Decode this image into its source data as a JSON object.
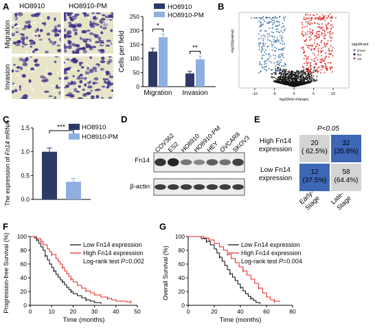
{
  "panels": {
    "a": "A",
    "b": "B",
    "c": "C",
    "d": "D",
    "e": "E",
    "f": "F",
    "g": "G"
  },
  "panel_a": {
    "col_headers": [
      "HO8910",
      "HO8910-PM"
    ],
    "row_labels": [
      "Migration",
      "Invasion"
    ],
    "colors": {
      "dark": "#2e3a66",
      "light": "#8fafe0",
      "cell_dark": "#3a2f8a",
      "bg": "#e8e4c8"
    }
  },
  "panel_b": {
    "ylabel": "-log10(pvalue)",
    "xlabel": "log2(fold change)",
    "xticks": [
      "-10",
      "-5",
      "0",
      "5",
      "10"
    ],
    "legend_title": "significant",
    "legend_items": [
      {
        "label": "Down",
        "color": "#4f7fb0"
      },
      {
        "label": "No",
        "color": "#111111"
      },
      {
        "label": "Up",
        "color": "#e03c3c"
      }
    ]
  },
  "panel_d": {
    "lanes": [
      "COV362",
      "ES2",
      "HO8910",
      "HO8910-PM",
      "HEY",
      "OVCAR8",
      "SKOV3"
    ],
    "rows": [
      "Fn14",
      "β-actin"
    ]
  },
  "panel_e": {
    "title": "P<0.05",
    "row_labels": [
      "High Fn14 expression",
      "Low Fn14 expression"
    ],
    "col_labels": [
      "Early-Stage",
      "Late-Stage"
    ],
    "cells": [
      {
        "count": "20",
        "pct": "( 62.5%)",
        "color": "#d4d4d4"
      },
      {
        "count": "32",
        "pct": "(35.6%)",
        "color": "#3e67b6"
      },
      {
        "count": "12",
        "pct": "(37.5%)",
        "color": "#3e67b6"
      },
      {
        "count": "58",
        "pct": "(64.4%)",
        "color": "#d4d4d4"
      }
    ]
  },
  "chart_data": [
    {
      "type": "bar",
      "panel": "A",
      "categories": [
        "Migration",
        "Invasion"
      ],
      "series": [
        {
          "name": "HO8910",
          "values": [
            125,
            47
          ],
          "errors": [
            12,
            8
          ],
          "color": "#2e3a66"
        },
        {
          "name": "HO8910-PM",
          "values": [
            176,
            97
          ],
          "errors": [
            12,
            12
          ],
          "color": "#8fafe0"
        }
      ],
      "ylabel": "Cells per field",
      "ylim": [
        0,
        250
      ],
      "yticks": [
        "0",
        "50",
        "100",
        "150",
        "200",
        "250"
      ],
      "significance": [
        "*",
        "**"
      ],
      "legend": "top-right"
    },
    {
      "type": "bar",
      "panel": "C",
      "categories": [
        "HO8910",
        "HO8910-PM"
      ],
      "values": [
        1.0,
        0.37
      ],
      "errors": [
        0.08,
        0.07
      ],
      "colors": [
        "#2e3a66",
        "#8fafe0"
      ],
      "ylabel": "The expression of Fn14 mRNA",
      "ylim": [
        0,
        1.5
      ],
      "yticks": [
        "0.0",
        "0.5",
        "1.0",
        "1.5"
      ],
      "significance": "***",
      "legend_series": [
        "HO8910",
        "HO8910-PM"
      ]
    },
    {
      "type": "line",
      "panel": "F",
      "xlabel": "Time (months)",
      "ylabel": "Progression-free Survival (%)",
      "xlim": [
        0,
        50
      ],
      "ylim": [
        0,
        100
      ],
      "xticks": [
        "0",
        "10",
        "20",
        "30",
        "40",
        "50"
      ],
      "yticks": [
        "0",
        "20",
        "40",
        "60",
        "80",
        "100"
      ],
      "annotation": "Log-rank test P=0.002",
      "series": [
        {
          "name": "Low Fn14 expression",
          "color": "#000000",
          "x": [
            0,
            2,
            3,
            4,
            5,
            6,
            7,
            8,
            9,
            10,
            11,
            12,
            13,
            14,
            15,
            16,
            17,
            18,
            19,
            20,
            22,
            24,
            26,
            28,
            30,
            33
          ],
          "y": [
            100,
            98,
            95,
            90,
            85,
            80,
            72,
            66,
            60,
            55,
            50,
            45,
            41,
            37,
            34,
            30,
            26,
            23,
            20,
            17,
            14,
            11,
            8,
            6,
            4,
            2
          ]
        },
        {
          "name": "High Fn14 expression",
          "color": "#e02020",
          "x": [
            0,
            3,
            5,
            6,
            8,
            9,
            10,
            12,
            13,
            14,
            15,
            16,
            17,
            18,
            19,
            20,
            22,
            24,
            26,
            28,
            30,
            33,
            36,
            38,
            40,
            45,
            47
          ],
          "y": [
            100,
            97,
            93,
            88,
            82,
            78,
            74,
            68,
            64,
            60,
            55,
            50,
            46,
            42,
            38,
            34,
            29,
            25,
            21,
            18,
            15,
            12,
            10,
            8,
            6,
            5,
            5
          ]
        }
      ]
    },
    {
      "type": "line",
      "panel": "G",
      "xlabel": "Time (months)",
      "ylabel": "Overall Survival (%)",
      "xlim": [
        0,
        80
      ],
      "ylim": [
        0,
        100
      ],
      "xticks": [
        "0",
        "20",
        "40",
        "60",
        "80"
      ],
      "yticks": [
        "0",
        "20",
        "40",
        "60",
        "80",
        "100"
      ],
      "annotation": "Log-rank test P=0.004",
      "series": [
        {
          "name": "Low Fn14 expression",
          "color": "#000000",
          "x": [
            0,
            10,
            14,
            17,
            20,
            22,
            24,
            26,
            28,
            30,
            32,
            34,
            36,
            38,
            40,
            42,
            44,
            46,
            48,
            50,
            52,
            55
          ],
          "y": [
            100,
            97,
            93,
            88,
            82,
            76,
            70,
            64,
            58,
            52,
            46,
            41,
            36,
            31,
            26,
            21,
            17,
            13,
            10,
            7,
            4,
            2
          ]
        },
        {
          "name": "High Fn14 expression",
          "color": "#e02020",
          "x": [
            0,
            12,
            16,
            20,
            24,
            27,
            30,
            33,
            36,
            39,
            42,
            45,
            48,
            51,
            54,
            57,
            60,
            63,
            66,
            70
          ],
          "y": [
            100,
            98,
            95,
            90,
            85,
            80,
            74,
            68,
            62,
            56,
            50,
            44,
            38,
            32,
            25,
            18,
            12,
            8,
            6,
            5
          ]
        }
      ]
    }
  ]
}
